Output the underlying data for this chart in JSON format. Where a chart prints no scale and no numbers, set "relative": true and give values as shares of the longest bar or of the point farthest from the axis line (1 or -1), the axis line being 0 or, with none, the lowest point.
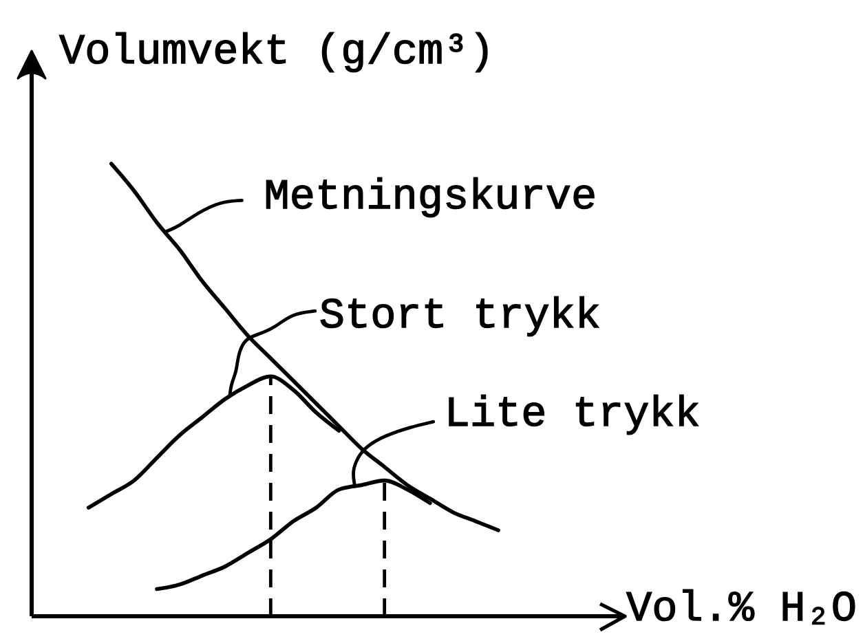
{
  "chart_data": {
    "type": "line",
    "xlabel": "Vol.% H₂O",
    "ylabel": "Volumvekt (g/cm³)",
    "relative": true,
    "categories": [
      null,
      null,
      null,
      null,
      null,
      null,
      null,
      null,
      null,
      null,
      null,
      null,
      null,
      null,
      null,
      null,
      null,
      null,
      null,
      null,
      null,
      null,
      null,
      null,
      null,
      null
    ],
    "series": [
      {
        "name": "Metningskurve",
        "color": "#000000",
        "values": [
          null,
          null,
          null,
          1,
          0.94,
          0.87,
          0.81,
          0.74,
          0.68,
          0.62,
          0.57,
          0.52,
          0.47,
          0.42,
          0.37,
          0.33,
          0.29,
          0.26,
          0.23,
          0.21,
          0.19,
          null,
          null,
          null,
          null,
          null
        ]
      },
      {
        "name": "Stort trykk",
        "color": "#000000",
        "values": [
          null,
          null,
          0.24,
          0.27,
          0.3,
          0.35,
          0.4,
          0.44,
          0.48,
          0.51,
          0.53,
          0.5,
          0.45,
          0.41,
          null,
          null,
          null,
          null,
          null,
          null,
          null,
          null,
          null,
          null,
          null,
          null
        ]
      },
      {
        "name": "Lite trykk",
        "color": "#000000",
        "values": [
          null,
          null,
          null,
          null,
          null,
          0.06,
          0.07,
          0.09,
          0.11,
          0.14,
          0.17,
          0.21,
          0.24,
          0.28,
          0.29,
          0.3,
          0.28,
          0.25,
          null,
          null,
          null,
          null,
          null,
          null,
          null,
          null
        ]
      }
    ]
  }
}
